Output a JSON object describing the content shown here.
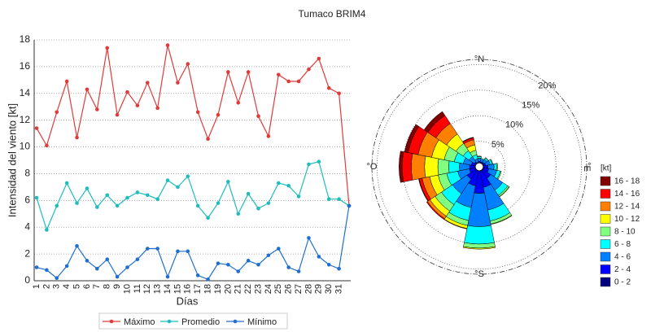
{
  "chart_data": [
    {
      "type": "line",
      "title": "Tumaco BRIM4",
      "xlabel": "Días",
      "ylabel": "Intensidad del viento [kt]",
      "categories": [
        "1",
        "2",
        "3",
        "4",
        "5",
        "6",
        "7",
        "8",
        "9",
        "10",
        "11",
        "12",
        "13",
        "14",
        "15",
        "16",
        "17",
        "18",
        "19",
        "20",
        "21",
        "22",
        "23",
        "24",
        "25",
        "26",
        "27",
        "28",
        "29",
        "30",
        "31",
        null
      ],
      "series": [
        {
          "name": "Máximo",
          "color": "#e03a3a",
          "values": [
            11.4,
            10.1,
            12.6,
            14.9,
            10.7,
            14.3,
            12.8,
            17.4,
            12.4,
            14.1,
            13.1,
            14.8,
            12.9,
            17.6,
            14.8,
            16.2,
            12.6,
            10.6,
            12.4,
            15.6,
            13.3,
            15.6,
            12.3,
            10.8,
            15.4,
            14.9,
            14.9,
            15.8,
            16.6,
            14.4,
            14.0,
            5.6
          ]
        },
        {
          "name": "Promedio",
          "color": "#1fbcbc",
          "values": [
            6.2,
            3.8,
            5.6,
            7.3,
            5.8,
            6.9,
            5.5,
            6.4,
            5.6,
            6.2,
            6.6,
            6.4,
            6.1,
            7.5,
            7.0,
            7.8,
            5.6,
            4.7,
            5.8,
            7.4,
            5.0,
            6.5,
            5.4,
            5.8,
            7.3,
            7.1,
            6.3,
            8.7,
            8.9,
            6.1,
            6.1,
            5.6
          ]
        },
        {
          "name": "Mínimo",
          "color": "#1f6fd0",
          "values": [
            1.0,
            0.8,
            0.2,
            1.1,
            2.6,
            1.5,
            0.9,
            1.6,
            0.3,
            1.0,
            1.6,
            2.4,
            2.4,
            0.3,
            2.2,
            2.2,
            0.4,
            0.1,
            1.3,
            1.2,
            0.7,
            1.5,
            1.2,
            1.9,
            2.4,
            1.0,
            0.7,
            3.2,
            1.8,
            1.2,
            0.9,
            5.6
          ]
        }
      ],
      "ylim": [
        0,
        18
      ],
      "yticks": [
        0,
        2,
        4,
        6,
        8,
        10,
        12,
        14,
        16,
        18
      ],
      "grid": true,
      "legend": "bottom"
    },
    {
      "type": "windrose",
      "legend_title": "[kt]",
      "theta": [
        0,
        22.5,
        45,
        67.5,
        90,
        112.5,
        135,
        157.5,
        180,
        202.5,
        225,
        247.5,
        270,
        292.5,
        315,
        337.5
      ],
      "direction_labels": [
        {
          "value": 0,
          "label": "°N"
        },
        {
          "value": 90,
          "label": "°E"
        },
        {
          "value": 180,
          "label": "°S"
        },
        {
          "value": 270,
          "label": "°O"
        }
      ],
      "rlim": [
        0,
        21
      ],
      "rticks": [
        {
          "value": 5,
          "label": "5%"
        },
        {
          "value": 10,
          "label": "10%"
        },
        {
          "value": 15,
          "label": "15%"
        },
        {
          "value": 20,
          "label": "20%"
        }
      ],
      "series": [
        {
          "name": "0 - 2",
          "color": "#000080",
          "values": [
            0.3,
            0.3,
            0.3,
            0.3,
            0.4,
            0.4,
            0.5,
            0.6,
            0.7,
            0.6,
            0.5,
            0.4,
            0.4,
            0.4,
            0.3,
            0.3
          ]
        },
        {
          "name": "2 - 4",
          "color": "#0000ff",
          "values": [
            0.8,
            0.7,
            0.8,
            1.0,
            1.3,
            1.5,
            2.2,
            3.5,
            4.5,
            3.2,
            2.4,
            1.6,
            1.5,
            1.2,
            0.9,
            0.6
          ]
        },
        {
          "name": "4 - 6",
          "color": "#0080ff",
          "values": [
            0.6,
            0.5,
            0.7,
            0.9,
            1.2,
            1.6,
            2.8,
            4.5,
            6.5,
            4.3,
            3.4,
            2.3,
            2.0,
            1.6,
            1.2,
            0.7
          ]
        },
        {
          "name": "6 - 8",
          "color": "#00ffff",
          "values": [
            0.3,
            0.2,
            0.3,
            0.4,
            0.5,
            0.7,
            1.2,
            2.2,
            3.4,
            2.6,
            2.6,
            2.2,
            2.1,
            1.8,
            1.4,
            0.8
          ]
        },
        {
          "name": "8 - 10",
          "color": "#80ff80",
          "values": [
            0.1,
            0,
            0.1,
            0.1,
            0.2,
            0.2,
            0.3,
            0.6,
            0.8,
            1.0,
            1.5,
            1.7,
            2.1,
            2.0,
            1.7,
            0.9
          ]
        },
        {
          "name": "10 - 12",
          "color": "#ffff00",
          "values": [
            0,
            0,
            0,
            0,
            0,
            0,
            0.1,
            0.1,
            0.2,
            0.6,
            1.2,
            1.7,
            2.6,
            2.5,
            2.2,
            1.1
          ]
        },
        {
          "name": "12 - 14",
          "color": "#ff8000",
          "values": [
            0,
            0,
            0,
            0,
            0,
            0,
            0,
            0,
            0,
            0.1,
            0.6,
            1.5,
            2.6,
            2.7,
            2.5,
            1.0
          ]
        },
        {
          "name": "14 - 16",
          "color": "#ff0000",
          "values": [
            0,
            0,
            0,
            0,
            0,
            0,
            0,
            0,
            0,
            0,
            0.2,
            0.6,
            1.8,
            2.0,
            1.9,
            0.4
          ]
        },
        {
          "name": "16 - 18",
          "color": "#800000",
          "values": [
            0,
            0,
            0,
            0,
            0,
            0,
            0,
            0,
            0,
            0,
            0,
            0.1,
            0.6,
            0.7,
            0.9,
            0.1
          ]
        }
      ]
    }
  ]
}
